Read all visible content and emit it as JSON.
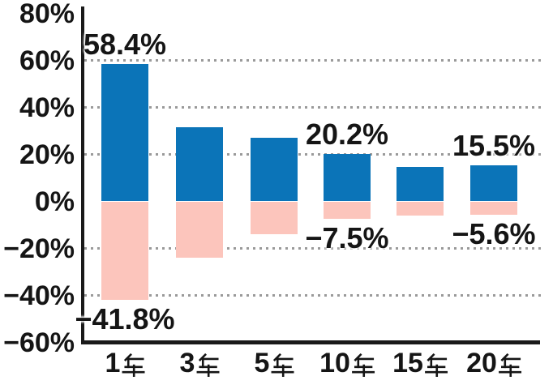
{
  "chart_data": {
    "type": "bar",
    "title": "",
    "categories": [
      "1年",
      "3年",
      "5年",
      "10年",
      "15年",
      "20年"
    ],
    "category_nums": [
      "1",
      "3",
      "5",
      "10",
      "15",
      "20"
    ],
    "category_suffix": "年",
    "series": [
      {
        "name": "positive",
        "color": "#0b74b8",
        "values": [
          58.4,
          31.5,
          27.0,
          20.2,
          14.5,
          15.5
        ],
        "labels": [
          "58.4%",
          "",
          "",
          "20.2%",
          "",
          "15.5%"
        ]
      },
      {
        "name": "negative",
        "color": "#fcc5bc",
        "values": [
          -41.8,
          -24.0,
          -14.0,
          -7.5,
          -6.0,
          -5.6
        ],
        "labels": [
          "−41.8%",
          "",
          "",
          "−7.5%",
          "",
          "−5.6%"
        ]
      }
    ],
    "y_axis": {
      "ticks": [
        "80%",
        "60%",
        "40%",
        "20%",
        "0%",
        "−20%",
        "−40%",
        "−60%"
      ],
      "tick_values": [
        80,
        60,
        40,
        20,
        0,
        -20,
        -40,
        -60
      ],
      "ylim": [
        -60,
        80
      ]
    },
    "gridline_values": [
      60,
      40,
      20,
      -20,
      -40
    ],
    "grid_style": "dotted horizontal",
    "colors": {
      "positive_bar": "#0b74b8",
      "negative_bar": "#fcc5bc",
      "zero_line": "#e8380d",
      "axis": "#1a1a1a",
      "grid": "#9a9a9a",
      "text": "#151515"
    },
    "legend": "none"
  }
}
